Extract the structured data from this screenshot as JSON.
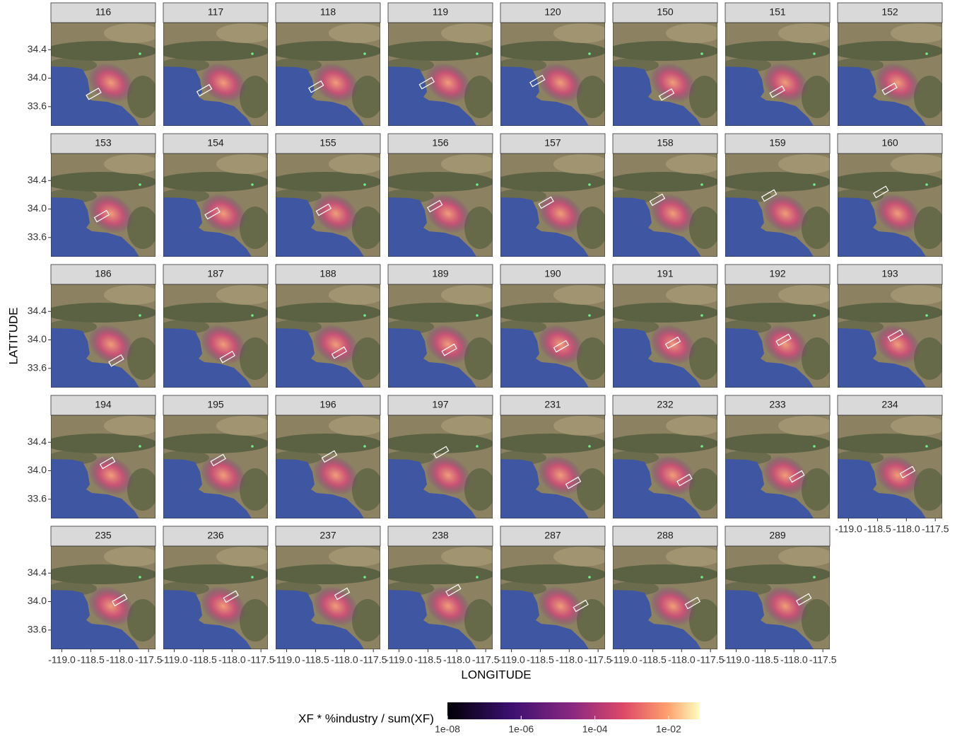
{
  "chart_data": {
    "type": "facet-map",
    "x_label": "LONGITUDE",
    "y_label": "LATITUDE",
    "xlim": [
      -119.19,
      -117.38
    ],
    "ylim": [
      33.33,
      34.78
    ],
    "xticks": [
      {
        "value": -119.0,
        "label": "-119.0"
      },
      {
        "value": -118.5,
        "label": "-118.5"
      },
      {
        "value": -118.0,
        "label": "-118.0"
      },
      {
        "value": -117.5,
        "label": "-117.5"
      }
    ],
    "yticks": [
      {
        "value": 33.6,
        "label": "33.6"
      },
      {
        "value": 34.0,
        "label": "34.0"
      },
      {
        "value": 34.4,
        "label": "34.4"
      }
    ],
    "columns": 8,
    "panels": [
      {
        "label": "116",
        "box": [
          -118.45,
          33.78
        ]
      },
      {
        "label": "117",
        "box": [
          -118.48,
          33.83
        ]
      },
      {
        "label": "118",
        "box": [
          -118.49,
          33.88
        ]
      },
      {
        "label": "119",
        "box": [
          -118.52,
          33.93
        ]
      },
      {
        "label": "120",
        "box": [
          -118.55,
          33.96
        ]
      },
      {
        "label": "150",
        "box": [
          -118.26,
          33.77
        ]
      },
      {
        "label": "151",
        "box": [
          -118.29,
          33.81
        ]
      },
      {
        "label": "152",
        "box": [
          -118.29,
          33.85
        ]
      },
      {
        "label": "153",
        "box": [
          -118.31,
          33.9
        ]
      },
      {
        "label": "154",
        "box": [
          -118.34,
          33.94
        ]
      },
      {
        "label": "155",
        "box": [
          -118.36,
          33.99
        ]
      },
      {
        "label": "156",
        "box": [
          -118.38,
          34.04
        ]
      },
      {
        "label": "157",
        "box": [
          -118.4,
          34.09
        ]
      },
      {
        "label": "158",
        "box": [
          -118.42,
          34.13
        ]
      },
      {
        "label": "159",
        "box": [
          -118.43,
          34.19
        ]
      },
      {
        "label": "160",
        "box": [
          -118.44,
          34.24
        ]
      },
      {
        "label": "186",
        "box": [
          -118.06,
          33.71
        ]
      },
      {
        "label": "187",
        "box": [
          -118.08,
          33.76
        ]
      },
      {
        "label": "188",
        "box": [
          -118.09,
          33.82
        ]
      },
      {
        "label": "189",
        "box": [
          -118.13,
          33.86
        ]
      },
      {
        "label": "190",
        "box": [
          -118.14,
          33.91
        ]
      },
      {
        "label": "191",
        "box": [
          -118.15,
          33.96
        ]
      },
      {
        "label": "192",
        "box": [
          -118.18,
          34.0
        ]
      },
      {
        "label": "193",
        "box": [
          -118.19,
          34.06
        ]
      },
      {
        "label": "194",
        "box": [
          -118.21,
          34.11
        ]
      },
      {
        "label": "195",
        "box": [
          -118.24,
          34.15
        ]
      },
      {
        "label": "196",
        "box": [
          -118.26,
          34.2
        ]
      },
      {
        "label": "197",
        "box": [
          -118.27,
          34.26
        ]
      },
      {
        "label": "231",
        "box": [
          -117.93,
          33.83
        ]
      },
      {
        "label": "232",
        "box": [
          -117.95,
          33.87
        ]
      },
      {
        "label": "233",
        "box": [
          -117.95,
          33.92
        ]
      },
      {
        "label": "234",
        "box": [
          -117.98,
          33.98
        ]
      },
      {
        "label": "235",
        "box": [
          -118.0,
          34.02
        ]
      },
      {
        "label": "236",
        "box": [
          -118.02,
          34.07
        ]
      },
      {
        "label": "237",
        "box": [
          -118.04,
          34.11
        ]
      },
      {
        "label": "238",
        "box": [
          -118.06,
          34.16
        ]
      },
      {
        "label": "287",
        "box": [
          -117.8,
          33.94
        ]
      },
      {
        "label": "288",
        "box": [
          -117.81,
          33.98
        ]
      },
      {
        "label": "289",
        "box": [
          -117.83,
          34.03
        ]
      }
    ],
    "colorbar": {
      "title": "XF * %industry / sum(XF)",
      "log_scale": true,
      "lim": [
        1e-08,
        0.07
      ],
      "ticks": [
        {
          "value": 1e-08,
          "label": "1e-08"
        },
        {
          "value": 1e-06,
          "label": "1e-06"
        },
        {
          "value": 0.0001,
          "label": "1e-04"
        },
        {
          "value": 0.01,
          "label": "1e-02"
        }
      ]
    }
  }
}
